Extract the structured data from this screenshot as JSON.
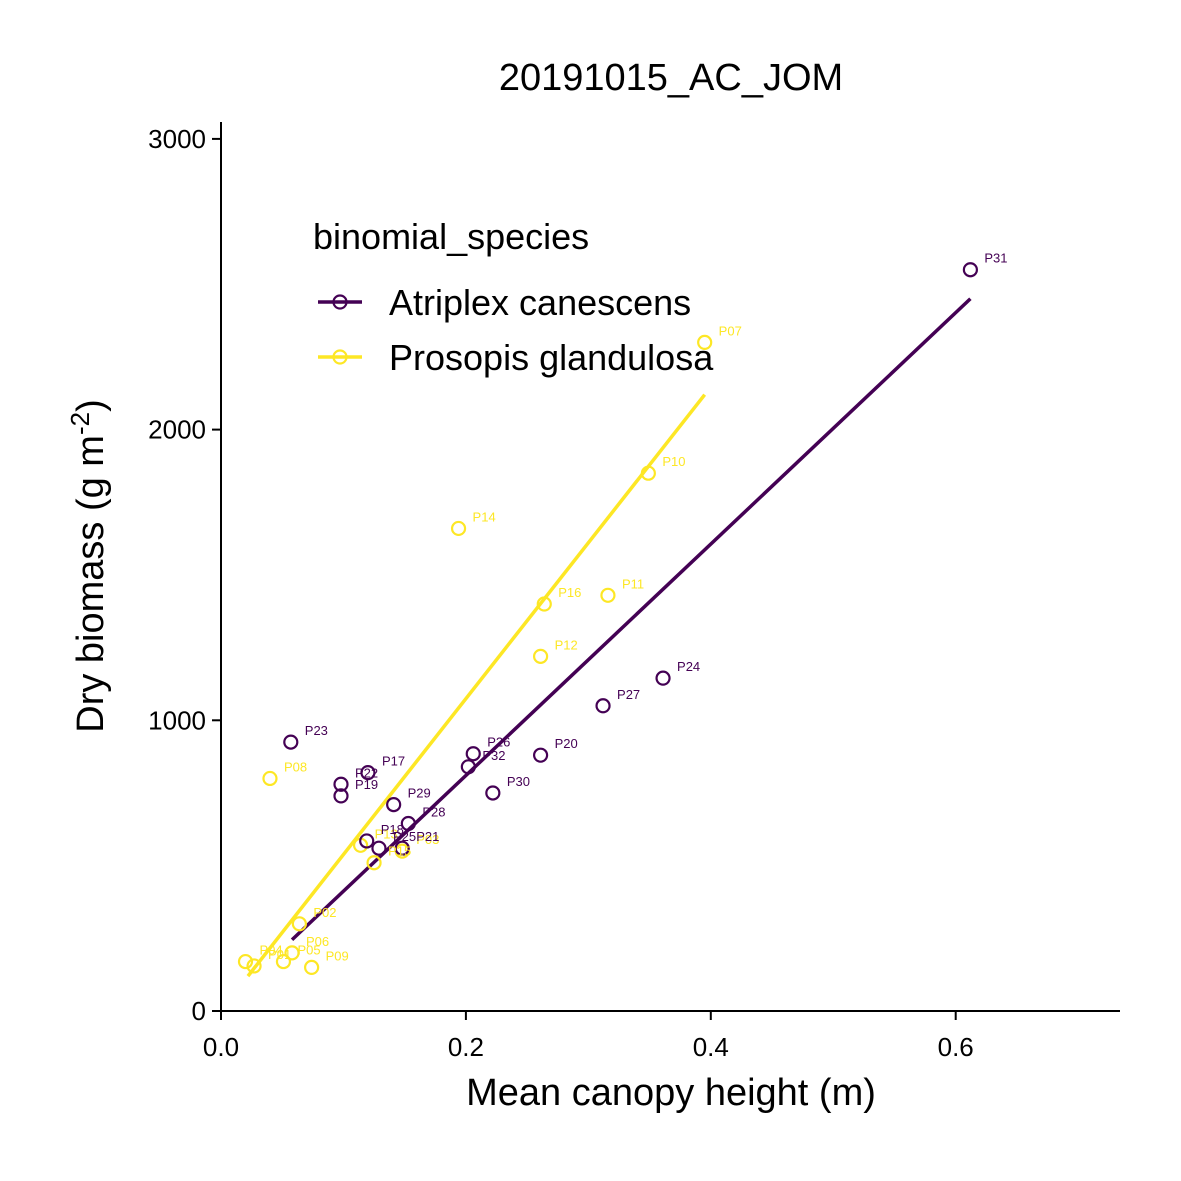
{
  "chart_data": {
    "type": "scatter",
    "title": "20191015_AC_JOM",
    "xlabel": "Mean canopy height (m)",
    "ylabel": "Dry biomass (g m",
    "ylabel_sup": "-2",
    "ylabel_close": ")",
    "xlim": [
      0,
      0.73
    ],
    "ylim": [
      0,
      3050
    ],
    "x_ticks": [
      0.0,
      0.2,
      0.4,
      0.6
    ],
    "x_tick_labels": [
      "0.0",
      "0.2",
      "0.4",
      "0.6"
    ],
    "y_ticks": [
      0,
      1000,
      2000,
      3000
    ],
    "y_tick_labels": [
      "0",
      "1000",
      "2000",
      "3000"
    ],
    "legend": {
      "title": "binomial_species",
      "placement": "top-left inside"
    },
    "series": [
      {
        "name": "Atriplex canescens",
        "color": "#440154",
        "points": [
          {
            "label": "P31",
            "x": 0.612,
            "y": 2550
          },
          {
            "label": "P24",
            "x": 0.361,
            "y": 1145
          },
          {
            "label": "P27",
            "x": 0.312,
            "y": 1050
          },
          {
            "label": "P20",
            "x": 0.261,
            "y": 880
          },
          {
            "label": "P26",
            "x": 0.206,
            "y": 885
          },
          {
            "label": "P32",
            "x": 0.202,
            "y": 840
          },
          {
            "label": "P30",
            "x": 0.222,
            "y": 750
          },
          {
            "label": "P23",
            "x": 0.057,
            "y": 925
          },
          {
            "label": "P17",
            "x": 0.12,
            "y": 820
          },
          {
            "label": "P22",
            "x": 0.098,
            "y": 780
          },
          {
            "label": "P19",
            "x": 0.098,
            "y": 740
          },
          {
            "label": "P29",
            "x": 0.141,
            "y": 710
          },
          {
            "label": "P28",
            "x": 0.153,
            "y": 645
          },
          {
            "label": "P18",
            "x": 0.119,
            "y": 585
          },
          {
            "label": "P25",
            "x": 0.129,
            "y": 560
          },
          {
            "label": "P21",
            "x": 0.148,
            "y": 560
          }
        ],
        "fit": {
          "x": [
            0.058,
            0.612
          ],
          "y": [
            245,
            2450
          ]
        }
      },
      {
        "name": "Prosopis glandulosa",
        "color": "#fde725",
        "points": [
          {
            "label": "P07",
            "x": 0.395,
            "y": 2300
          },
          {
            "label": "P10",
            "x": 0.349,
            "y": 1850
          },
          {
            "label": "P14",
            "x": 0.194,
            "y": 1660
          },
          {
            "label": "P16",
            "x": 0.264,
            "y": 1400
          },
          {
            "label": "P11",
            "x": 0.316,
            "y": 1430
          },
          {
            "label": "P12",
            "x": 0.261,
            "y": 1220
          },
          {
            "label": "P08",
            "x": 0.04,
            "y": 800
          },
          {
            "label": "P13",
            "x": 0.114,
            "y": 570
          },
          {
            "label": "P15",
            "x": 0.125,
            "y": 510
          },
          {
            "label": "P03",
            "x": 0.148,
            "y": 550
          },
          {
            "label": "P02",
            "x": 0.064,
            "y": 300
          },
          {
            "label": "P06",
            "x": 0.058,
            "y": 200
          },
          {
            "label": "P04",
            "x": 0.02,
            "y": 170
          },
          {
            "label": "P01",
            "x": 0.027,
            "y": 155
          },
          {
            "label": "P05",
            "x": 0.051,
            "y": 170
          },
          {
            "label": "P09",
            "x": 0.074,
            "y": 150
          }
        ],
        "fit": {
          "x": [
            0.022,
            0.395
          ],
          "y": [
            120,
            2120
          ]
        }
      }
    ]
  }
}
